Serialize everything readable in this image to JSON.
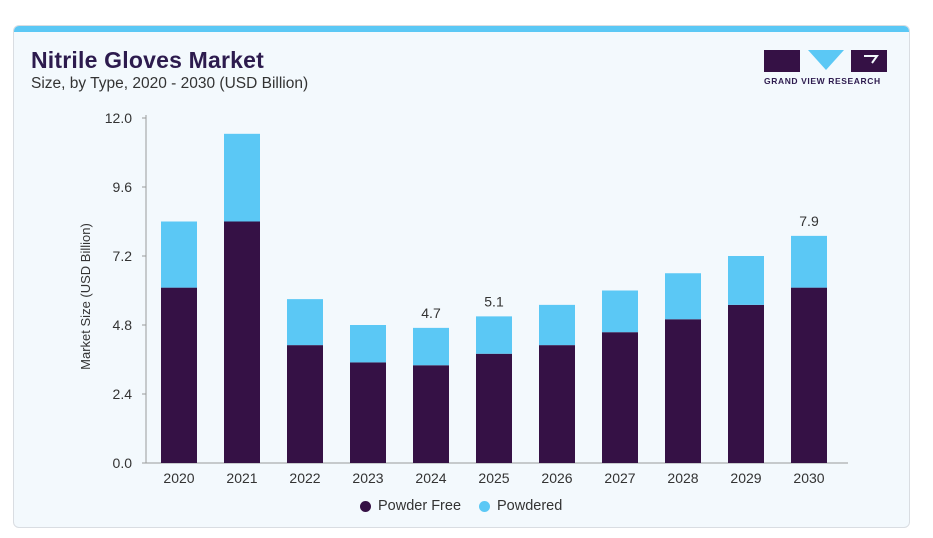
{
  "header": {
    "title": "Nitrile Gloves Market",
    "subtitle": "Size, by Type, 2020 - 2030 (USD Billion)"
  },
  "logo": {
    "text": "GRAND VIEW RESEARCH"
  },
  "colors": {
    "powder_free": "#351145",
    "powdered": "#5bc8f5",
    "accent_bar": "#5bc8f5",
    "title": "#2d1b4e"
  },
  "chart_data": {
    "type": "bar",
    "stacked": true,
    "title": "Nitrile Gloves Market",
    "subtitle": "Size, by Type, 2020 - 2030 (USD Billion)",
    "xlabel": "",
    "ylabel": "Market Size (USD Billion)",
    "ylim": [
      0,
      12.0
    ],
    "yticks": [
      "0.0",
      "2.4",
      "4.8",
      "7.2",
      "9.6",
      "12.0"
    ],
    "categories": [
      "2020",
      "2021",
      "2022",
      "2023",
      "2024",
      "2025",
      "2026",
      "2027",
      "2028",
      "2029",
      "2030"
    ],
    "series": [
      {
        "name": "Powder Free",
        "values": [
          6.1,
          8.4,
          4.1,
          3.5,
          3.4,
          3.8,
          4.1,
          4.55,
          5.0,
          5.5,
          6.1
        ]
      },
      {
        "name": "Powdered",
        "values": [
          2.3,
          3.05,
          1.6,
          1.3,
          1.3,
          1.3,
          1.4,
          1.45,
          1.6,
          1.7,
          1.8
        ]
      }
    ],
    "data_labels": [
      {
        "category": "2024",
        "text": "4.7"
      },
      {
        "category": "2025",
        "text": "5.1"
      },
      {
        "category": "2030",
        "text": "7.9"
      }
    ],
    "grid": false,
    "legend_position": "bottom"
  }
}
